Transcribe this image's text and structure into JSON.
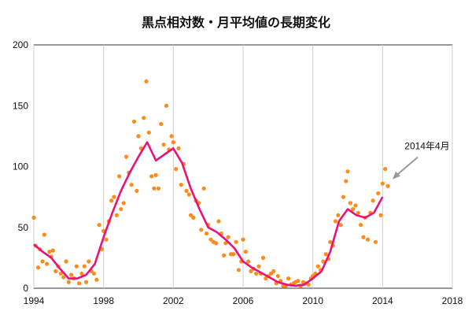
{
  "chart_data": {
    "type": "scatter",
    "title": "黒点相対数・月平均値の長期変化",
    "xlabel": "",
    "ylabel": "",
    "xlim": [
      1994,
      2018
    ],
    "ylim": [
      0,
      200
    ],
    "x_ticks": [
      "1994",
      "1998",
      "2002",
      "2006",
      "2010",
      "2014",
      "2018"
    ],
    "y_ticks": [
      "0",
      "50",
      "100",
      "150",
      "200"
    ],
    "grid": "vertical",
    "annotation": {
      "text": "2014年4月",
      "x": 2014.3,
      "y": 87
    },
    "colors": {
      "points": "#ff8c1a",
      "smoothed": "#e8127a",
      "arrow": "#9a9a9a",
      "grid": "#cfcfcf"
    },
    "series": [
      {
        "style": "points",
        "x": [
          1994.0,
          1994.1,
          1994.25,
          1994.35,
          1994.5,
          1994.6,
          1994.75,
          1994.9,
          1995.0,
          1995.1,
          1995.25,
          1995.4,
          1995.55,
          1995.7,
          1995.85,
          1996.0,
          1996.15,
          1996.3,
          1996.45,
          1996.6,
          1996.75,
          1996.9,
          1997.0,
          1997.15,
          1997.3,
          1997.45,
          1997.6,
          1997.75,
          1997.9,
          1998.0,
          1998.15,
          1998.3,
          1998.45,
          1998.6,
          1998.75,
          1998.9,
          1999.0,
          1999.15,
          1999.3,
          1999.45,
          1999.6,
          1999.75,
          1999.9,
          2000.0,
          2000.15,
          2000.3,
          2000.45,
          2000.6,
          2000.75,
          2000.9,
          2001.0,
          2001.15,
          2001.3,
          2001.45,
          2001.6,
          2001.75,
          2001.9,
          2002.0,
          2002.15,
          2002.3,
          2002.45,
          2002.6,
          2002.75,
          2002.9,
          2003.0,
          2003.15,
          2003.3,
          2003.45,
          2003.6,
          2003.75,
          2003.9,
          2004.0,
          2004.15,
          2004.3,
          2004.45,
          2004.6,
          2004.75,
          2004.9,
          2005.0,
          2005.15,
          2005.3,
          2005.45,
          2005.6,
          2005.75,
          2005.9,
          2006.0,
          2006.15,
          2006.3,
          2006.45,
          2006.6,
          2006.75,
          2006.9,
          2007.0,
          2007.15,
          2007.3,
          2007.45,
          2007.6,
          2007.75,
          2007.9,
          2008.0,
          2008.15,
          2008.3,
          2008.45,
          2008.6,
          2008.75,
          2008.9,
          2009.0,
          2009.15,
          2009.3,
          2009.45,
          2009.6,
          2009.75,
          2009.9,
          2010.0,
          2010.15,
          2010.3,
          2010.45,
          2010.6,
          2010.75,
          2010.9,
          2011.0,
          2011.15,
          2011.3,
          2011.45,
          2011.6,
          2011.75,
          2011.9,
          2012.0,
          2012.15,
          2012.3,
          2012.45,
          2012.6,
          2012.75,
          2012.9,
          2013.0,
          2013.15,
          2013.3,
          2013.45,
          2013.6,
          2013.75,
          2013.9,
          2014.0,
          2014.15,
          2014.3
        ],
        "y": [
          58,
          35,
          17,
          32,
          22,
          44,
          20,
          30,
          26,
          31,
          14,
          18,
          12,
          9,
          22,
          5,
          11,
          8,
          18,
          4,
          12,
          18,
          5,
          22,
          14,
          12,
          7,
          52,
          32,
          47,
          40,
          55,
          72,
          75,
          60,
          92,
          65,
          70,
          108,
          95,
          85,
          137,
          80,
          125,
          115,
          140,
          170,
          128,
          92,
          82,
          93,
          82,
          135,
          118,
          150,
          114,
          125,
          120,
          98,
          115,
          85,
          102,
          80,
          77,
          60,
          58,
          72,
          70,
          48,
          82,
          45,
          52,
          40,
          38,
          37,
          55,
          45,
          27,
          37,
          42,
          28,
          28,
          38,
          15,
          22,
          40,
          30,
          22,
          14,
          16,
          12,
          18,
          12,
          25,
          8,
          10,
          12,
          14,
          4,
          10,
          6,
          2,
          2,
          8,
          3,
          4,
          5,
          6,
          2,
          5,
          4,
          3,
          8,
          10,
          12,
          18,
          15,
          22,
          28,
          24,
          38,
          35,
          55,
          60,
          52,
          75,
          88,
          96,
          70,
          65,
          68,
          62,
          52,
          42,
          58,
          40,
          62,
          72,
          38,
          78,
          60,
          86,
          98,
          84
        ]
      },
      {
        "style": "line",
        "x": [
          1994,
          1994.5,
          1995,
          1995.5,
          1996,
          1996.5,
          1997,
          1997.5,
          1998,
          1998.5,
          1999,
          1999.5,
          2000,
          2000.5,
          2001,
          2001.5,
          2002,
          2002.5,
          2003,
          2003.5,
          2004,
          2004.5,
          2005,
          2005.5,
          2006,
          2006.5,
          2007,
          2007.5,
          2008,
          2008.5,
          2009,
          2009.5,
          2010,
          2010.5,
          2011,
          2011.5,
          2012,
          2012.5,
          2013,
          2013.5,
          2014
        ],
        "y": [
          36,
          30,
          25,
          16,
          8,
          8,
          11,
          20,
          42,
          62,
          80,
          95,
          108,
          120,
          105,
          110,
          115,
          103,
          82,
          65,
          50,
          46,
          40,
          33,
          22,
          17,
          13,
          9,
          5,
          3,
          2,
          3,
          8,
          14,
          30,
          55,
          65,
          60,
          58,
          62,
          75
        ]
      }
    ]
  }
}
